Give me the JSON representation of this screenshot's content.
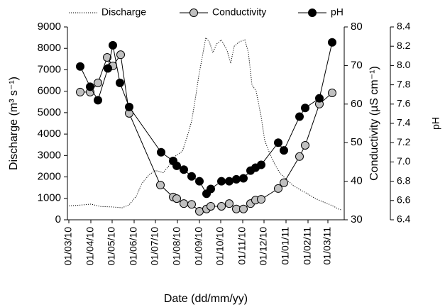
{
  "chart_data": {
    "type": "line",
    "xlabel": "Date (dd/mm/yy)",
    "ylabel": "Discharge (m³ s⁻¹)",
    "y2label": "Conductivity (µS cm⁻¹)",
    "y3label": "pH",
    "xlim": [
      "2010-02-27",
      "2011-03-24"
    ],
    "xticks": [
      {
        "value": "2010-03-01",
        "label": "01/03/10"
      },
      {
        "value": "2010-04-01",
        "label": "01/04/10"
      },
      {
        "value": "2010-05-01",
        "label": "01/05/10"
      },
      {
        "value": "2010-06-01",
        "label": "01/06/10"
      },
      {
        "value": "2010-07-01",
        "label": "01/07/10"
      },
      {
        "value": "2010-08-01",
        "label": "01/08/10"
      },
      {
        "value": "2010-09-01",
        "label": "01/09/10"
      },
      {
        "value": "2010-10-01",
        "label": "01/10/10"
      },
      {
        "value": "2010-11-01",
        "label": "01/11/10"
      },
      {
        "value": "2010-12-01",
        "label": "01/12/10"
      },
      {
        "value": "2011-01-01",
        "label": "01/01/11"
      },
      {
        "value": "2011-02-01",
        "label": "01/02/11"
      },
      {
        "value": "2011-03-01",
        "label": "01/03/11"
      }
    ],
    "ylim": [
      0,
      9000
    ],
    "yticks": [
      0,
      1000,
      2000,
      3000,
      4000,
      5000,
      6000,
      7000,
      8000,
      9000
    ],
    "y2lim": [
      30,
      80
    ],
    "y2ticks": [
      30,
      40,
      50,
      60,
      70,
      80
    ],
    "y3lim": [
      6.4,
      8.4
    ],
    "y3ticks": [
      {
        "value": 6.4,
        "label": "6.4"
      },
      {
        "value": 6.6,
        "label": "6.6"
      },
      {
        "value": 6.8,
        "label": "6.8"
      },
      {
        "value": 7.0,
        "label": "7.0"
      },
      {
        "value": 7.2,
        "label": "7.2"
      },
      {
        "value": 7.4,
        "label": "7.4"
      },
      {
        "value": 7.6,
        "label": "7.6"
      },
      {
        "value": 7.8,
        "label": "7.8"
      },
      {
        "value": 8.0,
        "label": "8.0"
      },
      {
        "value": 8.2,
        "label": "8.2"
      },
      {
        "value": 8.4,
        "label": "8.4"
      }
    ],
    "series": [
      {
        "name": "Discharge",
        "color": "#000000",
        "line_style": "dotted",
        "marker": "none",
        "x": [
          "2010-03-01",
          "2010-03-15",
          "2010-04-01",
          "2010-04-15",
          "2010-05-01",
          "2010-05-15",
          "2010-05-25",
          "2010-06-04",
          "2010-06-12",
          "2010-06-22",
          "2010-07-01",
          "2010-07-12",
          "2010-07-22",
          "2010-07-30",
          "2010-08-08",
          "2010-08-14",
          "2010-08-21",
          "2010-08-26",
          "2010-08-31",
          "2010-09-05",
          "2010-09-10",
          "2010-09-15",
          "2010-09-20",
          "2010-09-25",
          "2010-10-02",
          "2010-10-10",
          "2010-10-15",
          "2010-10-20",
          "2010-10-27",
          "2010-11-04",
          "2010-11-09",
          "2010-11-14",
          "2010-11-20",
          "2010-11-27",
          "2010-12-02",
          "2010-12-09",
          "2010-12-16",
          "2010-12-23",
          "2011-01-01",
          "2011-01-11",
          "2011-01-21",
          "2011-02-01",
          "2011-02-11",
          "2011-02-21",
          "2011-03-01",
          "2011-03-09",
          "2011-03-16",
          "2011-03-21"
        ],
        "values": [
          650,
          680,
          730,
          620,
          600,
          560,
          700,
          1100,
          1700,
          2100,
          2300,
          2200,
          2600,
          3000,
          3200,
          3800,
          4600,
          5600,
          6700,
          7600,
          8500,
          8300,
          7800,
          8200,
          8400,
          7900,
          7300,
          8100,
          8300,
          8400,
          7800,
          6300,
          6000,
          4800,
          3700,
          3100,
          2600,
          2200,
          1900,
          1600,
          1400,
          1200,
          1000,
          850,
          750,
          630,
          500,
          450
        ]
      },
      {
        "name": "Conductivity",
        "color": "#c0c0c0",
        "line_style": "solid",
        "marker": "circle",
        "axis": "y2",
        "x": [
          "2010-03-17",
          "2010-03-31",
          "2010-04-11",
          "2010-04-24",
          "2010-05-02",
          "2010-05-13",
          "2010-05-25",
          "2010-07-08",
          "2010-07-26",
          "2010-07-31",
          "2010-08-10",
          "2010-08-21",
          "2010-09-01",
          "2010-09-11",
          "2010-09-17",
          "2010-10-02",
          "2010-10-13",
          "2010-10-23",
          "2010-11-02",
          "2010-11-12",
          "2010-11-19",
          "2010-11-27",
          "2010-12-21",
          "2010-12-29",
          "2011-01-20",
          "2011-01-28",
          "2011-02-17",
          "2011-03-07"
        ],
        "values": [
          63.1,
          63.1,
          65.5,
          72.1,
          69.9,
          72.8,
          57.6,
          39.0,
          35.9,
          35.5,
          34.2,
          34.0,
          32.2,
          32.8,
          33.5,
          33.5,
          34.2,
          32.8,
          32.8,
          34.2,
          35.1,
          35.3,
          38.1,
          39.6,
          46.4,
          49.3,
          60.0,
          62.9
        ]
      },
      {
        "name": "pH",
        "color": "#000000",
        "line_style": "solid",
        "marker": "circle",
        "axis": "y3",
        "x": [
          "2010-03-17",
          "2010-03-31",
          "2010-04-11",
          "2010-04-25",
          "2010-05-02",
          "2010-05-12",
          "2010-05-25",
          "2010-07-09",
          "2010-07-26",
          "2010-07-31",
          "2010-08-10",
          "2010-08-21",
          "2010-09-01",
          "2010-09-11",
          "2010-09-17",
          "2010-10-02",
          "2010-10-13",
          "2010-10-23",
          "2010-11-02",
          "2010-11-12",
          "2010-11-19",
          "2010-11-27",
          "2010-12-21",
          "2010-12-29",
          "2011-01-20",
          "2011-01-28",
          "2011-02-17",
          "2011-03-07"
        ],
        "values": [
          7.99,
          7.78,
          7.64,
          7.97,
          8.21,
          7.82,
          7.57,
          7.1,
          7.01,
          6.96,
          6.92,
          6.85,
          6.8,
          6.67,
          6.72,
          6.8,
          6.8,
          6.82,
          6.83,
          6.91,
          6.94,
          6.97,
          7.2,
          7.12,
          7.47,
          7.56,
          7.66,
          8.24
        ]
      }
    ]
  }
}
